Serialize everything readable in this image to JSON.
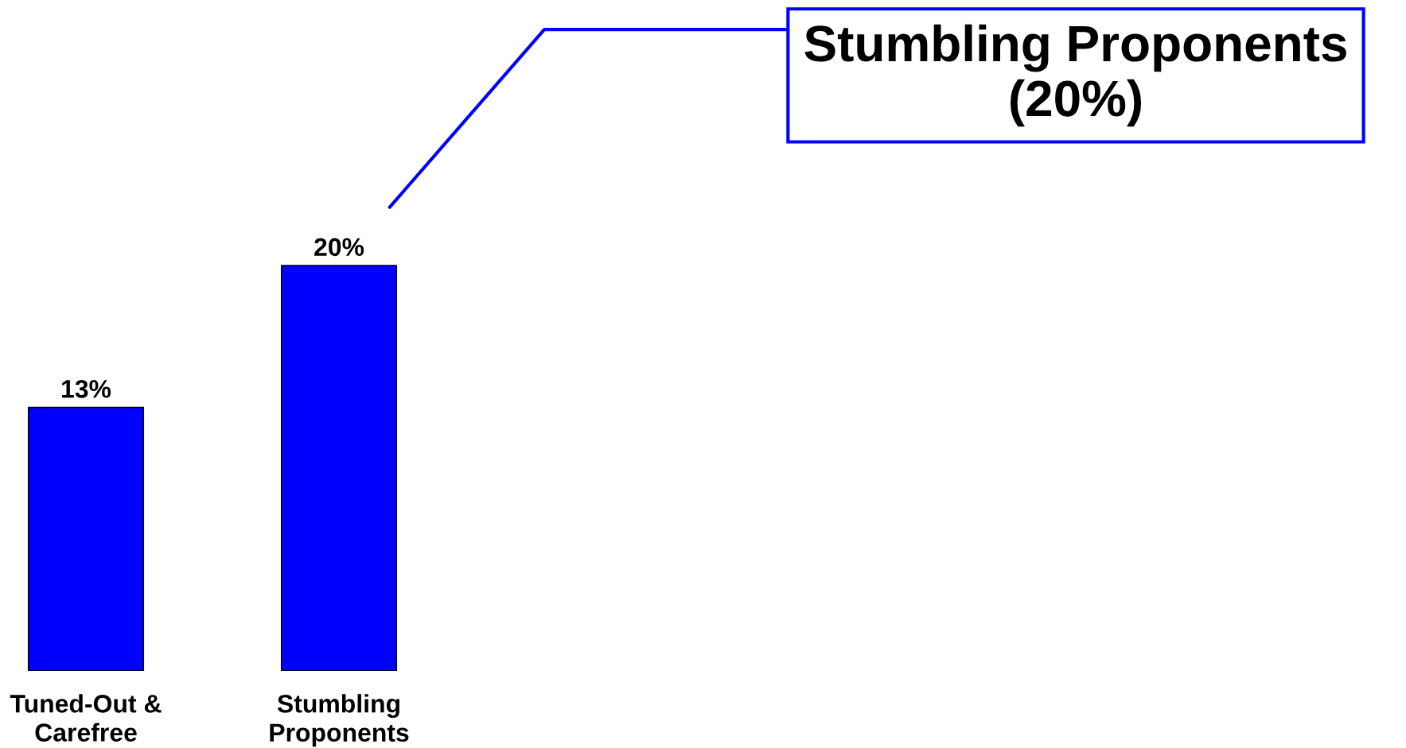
{
  "chart_data": {
    "type": "bar",
    "categories": [
      "Tuned-Out &\nCarefree",
      "Stumbling\nProponents"
    ],
    "values": [
      13,
      20
    ],
    "value_labels": [
      "13%",
      "20%"
    ],
    "color": "#0000ff",
    "annotations": [
      "Stumbling Proponents\n(20%)"
    ]
  }
}
